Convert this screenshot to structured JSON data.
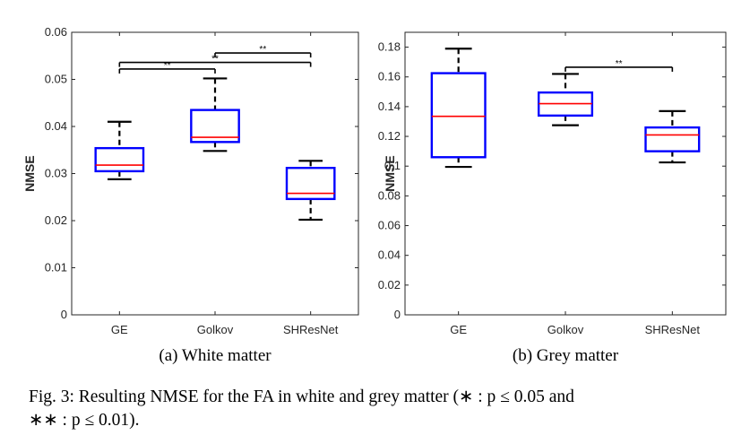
{
  "caption": {
    "line1": "Fig. 3: Resulting NMSE for the FA in white and grey matter (∗ : p ≤ 0.05 and",
    "line2": "∗∗ : p ≤ 0.01)."
  },
  "colors": {
    "box": "#0000ff",
    "median": "#ff0000",
    "whisker": "#000000",
    "axis": "#262626"
  },
  "chart_data": [
    {
      "type": "box",
      "subcaption": "(a) White matter",
      "ylabel": "NMSE",
      "xlabel": "",
      "ylim": [
        0,
        0.06
      ],
      "yticks": [
        0,
        0.01,
        0.02,
        0.03,
        0.04,
        0.05,
        0.06
      ],
      "ytick_labels": [
        "0",
        "0.01",
        "0.02",
        "0.03",
        "0.04",
        "0.05",
        "0.06"
      ],
      "categories": [
        "GE",
        "Golkov",
        "SHResNet"
      ],
      "boxes": [
        {
          "min": 0.0288,
          "q1": 0.0305,
          "median": 0.0318,
          "q3": 0.0354,
          "max": 0.041
        },
        {
          "min": 0.0348,
          "q1": 0.0367,
          "median": 0.0377,
          "q3": 0.0435,
          "max": 0.0502
        },
        {
          "min": 0.0202,
          "q1": 0.0246,
          "median": 0.0258,
          "q3": 0.0312,
          "max": 0.0327
        }
      ],
      "significance": [
        {
          "from": "GE",
          "to": "Golkov",
          "label": "**",
          "y": 0.0522
        },
        {
          "from": "GE",
          "to": "SHResNet",
          "label": "**",
          "y": 0.0536
        },
        {
          "from": "Golkov",
          "to": "SHResNet",
          "label": "**",
          "y": 0.0556
        }
      ]
    },
    {
      "type": "box",
      "subcaption": "(b) Grey matter",
      "ylabel": "NMSE",
      "xlabel": "",
      "ylim": [
        0,
        0.19
      ],
      "yticks": [
        0,
        0.02,
        0.04,
        0.06,
        0.08,
        0.1,
        0.12,
        0.14,
        0.16,
        0.18
      ],
      "ytick_labels": [
        "0",
        "0.02",
        "0.04",
        "0.06",
        "0.08",
        "0.1",
        "0.12",
        "0.14",
        "0.16",
        "0.18"
      ],
      "categories": [
        "GE",
        "Golkov",
        "SHResNet"
      ],
      "boxes": [
        {
          "min": 0.0995,
          "q1": 0.106,
          "median": 0.1335,
          "q3": 0.1625,
          "max": 0.179
        },
        {
          "min": 0.1275,
          "q1": 0.134,
          "median": 0.142,
          "q3": 0.1495,
          "max": 0.162
        },
        {
          "min": 0.1025,
          "q1": 0.11,
          "median": 0.121,
          "q3": 0.126,
          "max": 0.137
        }
      ],
      "significance": [
        {
          "from": "Golkov",
          "to": "SHResNet",
          "label": "**",
          "y": 0.1665
        }
      ]
    }
  ]
}
